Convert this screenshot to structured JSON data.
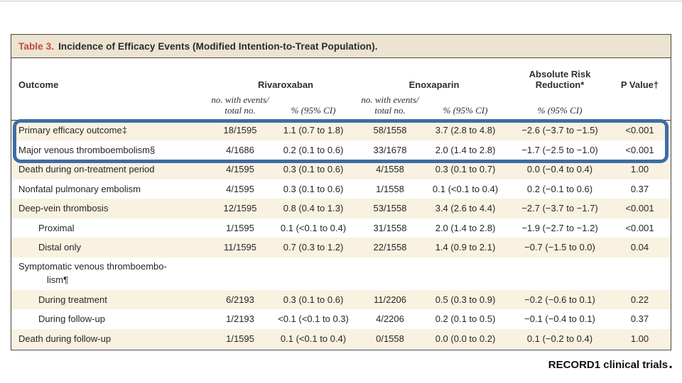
{
  "colors": {
    "title-bar-bg": "#ece3d0",
    "title-red": "#c4483b",
    "cream": "#f9f2e1",
    "highlight": "#3e6da5"
  },
  "caption": {
    "text": "RECORD1 clinical trials",
    "period": "."
  },
  "table": {
    "title_prefix": "Table 3.",
    "title": "Incidence of Efficacy Events (Modified Intention-to-Treat Population).",
    "header": {
      "outcome": "Outcome",
      "group_rivaroxaban": "Rivaroxaban",
      "group_enoxaparin": "Enoxaparin",
      "group_arr": "Absolute Risk Reduction*",
      "group_pvalue": "P Value†",
      "sub_no_line1": "no. with events/",
      "sub_no_line2": "total no.",
      "sub_ci": "% (95% CI)"
    },
    "rows": [
      {
        "label": "Primary efficacy outcome‡",
        "indent": 0,
        "cells": [
          "18/1595",
          "1.1 (0.7 to 1.8)",
          "58/1558",
          "3.7 (2.8 to 4.8)",
          "−2.6 (−3.7 to −1.5)",
          "<0.001"
        ]
      },
      {
        "label": "Major venous thromboembolism§",
        "indent": 0,
        "cells": [
          "4/1686",
          "0.2 (0.1 to 0.6)",
          "33/1678",
          "2.0 (1.4 to 2.8)",
          "−1.7 (−2.5 to −1.0)",
          "<0.001"
        ]
      },
      {
        "label": "Death during on-treatment period",
        "indent": 0,
        "cells": [
          "4/1595",
          "0.3 (0.1 to 0.6)",
          "4/1558",
          "0.3 (0.1 to 0.7)",
          "0.0 (−0.4 to 0.4)",
          "1.00"
        ]
      },
      {
        "label": "Nonfatal pulmonary embolism",
        "indent": 0,
        "cells": [
          "4/1595",
          "0.3 (0.1 to 0.6)",
          "1/1558",
          "0.1 (<0.1 to 0.4)",
          "0.2 (−0.1 to 0.6)",
          "0.37"
        ]
      },
      {
        "label": "Deep-vein thrombosis",
        "indent": 0,
        "cells": [
          "12/1595",
          "0.8 (0.4 to 1.3)",
          "53/1558",
          "3.4 (2.6 to 4.4)",
          "−2.7 (−3.7 to −1.7)",
          "<0.001"
        ]
      },
      {
        "label": "Proximal",
        "indent": 1,
        "cells": [
          "1/1595",
          "0.1 (<0.1 to 0.4)",
          "31/1558",
          "2.0 (1.4 to 2.8)",
          "−1.9 (−2.7 to −1.2)",
          "<0.001"
        ]
      },
      {
        "label": "Distal only",
        "indent": 1,
        "cells": [
          "11/1595",
          "0.7 (0.3 to 1.2)",
          "22/1558",
          "1.4 (0.9 to 2.1)",
          "−0.7 (−1.5 to 0.0)",
          "0.04"
        ]
      },
      {
        "label": "Symptomatic venous thromboembo-",
        "label_line2": "lism¶",
        "indent": 0,
        "cells": [
          "",
          "",
          "",
          "",
          "",
          ""
        ]
      },
      {
        "label": "During treatment",
        "indent": 1,
        "cells": [
          "6/2193",
          "0.3 (0.1 to 0.6)",
          "11/2206",
          "0.5 (0.3 to 0.9)",
          "−0.2 (−0.6 to 0.1)",
          "0.22"
        ]
      },
      {
        "label": "During follow-up",
        "indent": 1,
        "cells": [
          "1/2193",
          "<0.1 (<0.1 to 0.3)",
          "4/2206",
          "0.2 (0.1 to 0.5)",
          "−0.1 (−0.4 to 0.1)",
          "0.37"
        ]
      },
      {
        "label": "Death during follow-up",
        "indent": 0,
        "cells": [
          "1/1595",
          "0.1 (<0.1 to 0.4)",
          "0/1558",
          "0.0 (0.0 to 0.2)",
          "0.1 (−0.2 to 0.4)",
          "1.00"
        ]
      }
    ],
    "highlight": {
      "row_indices": [
        0,
        1
      ]
    }
  }
}
